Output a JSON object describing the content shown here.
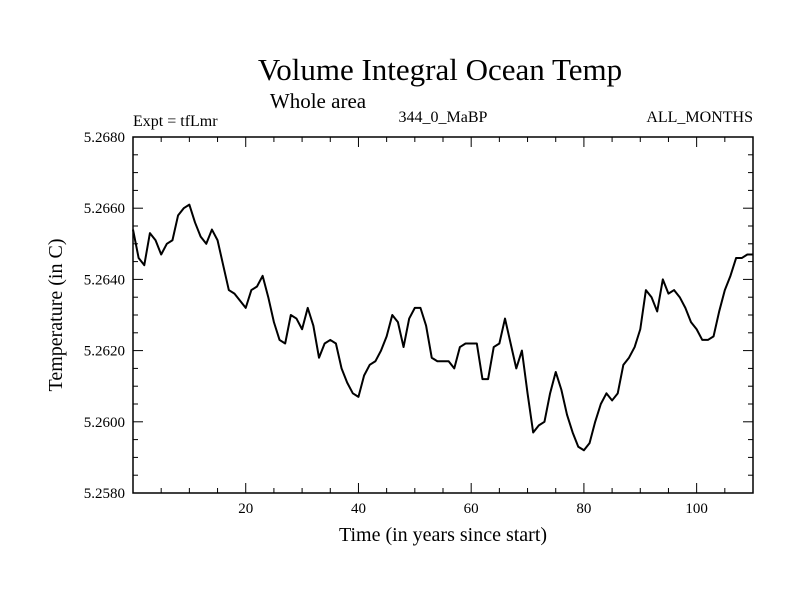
{
  "chart_data": {
    "type": "line",
    "title": "Volume Integral Ocean Temp",
    "subtitle": "Whole area",
    "left_label": "Expt = tfLmr",
    "center_label": "344_0_MaBP",
    "right_label": "ALL_MONTHS",
    "xlabel": "Time (in years since start)",
    "ylabel": "Temperature (in C)",
    "xlim": [
      0,
      110
    ],
    "ylim": [
      5.258,
      5.268
    ],
    "x_ticks": [
      20,
      40,
      60,
      80,
      100
    ],
    "y_ticks": [
      "5.2580",
      "5.2600",
      "5.2620",
      "5.2640",
      "5.2660",
      "5.2680"
    ],
    "grid": false,
    "series": [
      {
        "name": "Volume Integral Ocean Temp",
        "color": "#000000",
        "x": [
          0,
          1,
          2,
          3,
          4,
          5,
          6,
          7,
          8,
          9,
          10,
          11,
          12,
          13,
          14,
          15,
          16,
          17,
          18,
          19,
          20,
          21,
          22,
          23,
          24,
          25,
          26,
          27,
          28,
          29,
          30,
          31,
          32,
          33,
          34,
          35,
          36,
          37,
          38,
          39,
          40,
          41,
          42,
          43,
          44,
          45,
          46,
          47,
          48,
          49,
          50,
          51,
          52,
          53,
          54,
          55,
          56,
          57,
          58,
          59,
          60,
          61,
          62,
          63,
          64,
          65,
          66,
          67,
          68,
          69,
          70,
          71,
          72,
          73,
          74,
          75,
          76,
          77,
          78,
          79,
          80,
          81,
          82,
          83,
          84,
          85,
          86,
          87,
          88,
          89,
          90,
          91,
          92,
          93,
          94,
          95,
          96,
          97,
          98,
          99,
          100,
          101,
          102,
          103,
          104,
          105,
          106,
          107,
          108,
          109,
          110
        ],
        "values": [
          5.2654,
          5.2646,
          5.2644,
          5.2653,
          5.2651,
          5.2647,
          5.265,
          5.2651,
          5.2658,
          5.266,
          5.2661,
          5.2656,
          5.2652,
          5.265,
          5.2654,
          5.2651,
          5.2644,
          5.2637,
          5.2636,
          5.2634,
          5.2632,
          5.2637,
          5.2638,
          5.2641,
          5.2635,
          5.2628,
          5.2623,
          5.2622,
          5.263,
          5.2629,
          5.2626,
          5.2632,
          5.2627,
          5.2618,
          5.2622,
          5.2623,
          5.2622,
          5.2615,
          5.2611,
          5.2608,
          5.2607,
          5.2613,
          5.2616,
          5.2617,
          5.262,
          5.2624,
          5.263,
          5.2628,
          5.2621,
          5.2629,
          5.2632,
          5.2632,
          5.2627,
          5.2618,
          5.2617,
          5.2617,
          5.2617,
          5.2615,
          5.2621,
          5.2622,
          5.2622,
          5.2622,
          5.2612,
          5.2612,
          5.2621,
          5.2622,
          5.2629,
          5.2622,
          5.2615,
          5.262,
          5.2608,
          5.2597,
          5.2599,
          5.26,
          5.2608,
          5.2614,
          5.2609,
          5.2602,
          5.2597,
          5.2593,
          5.2592,
          5.2594,
          5.26,
          5.2605,
          5.2608,
          5.2606,
          5.2608,
          5.2616,
          5.2618,
          5.2621,
          5.2626,
          5.2637,
          5.2635,
          5.2631,
          5.264,
          5.2636,
          5.2637,
          5.2635,
          5.2632,
          5.2628,
          5.2626,
          5.2623,
          5.2623,
          5.2624,
          5.2631,
          5.2637,
          5.2641,
          5.2646,
          5.2646,
          5.2647,
          5.2647
        ]
      }
    ]
  }
}
